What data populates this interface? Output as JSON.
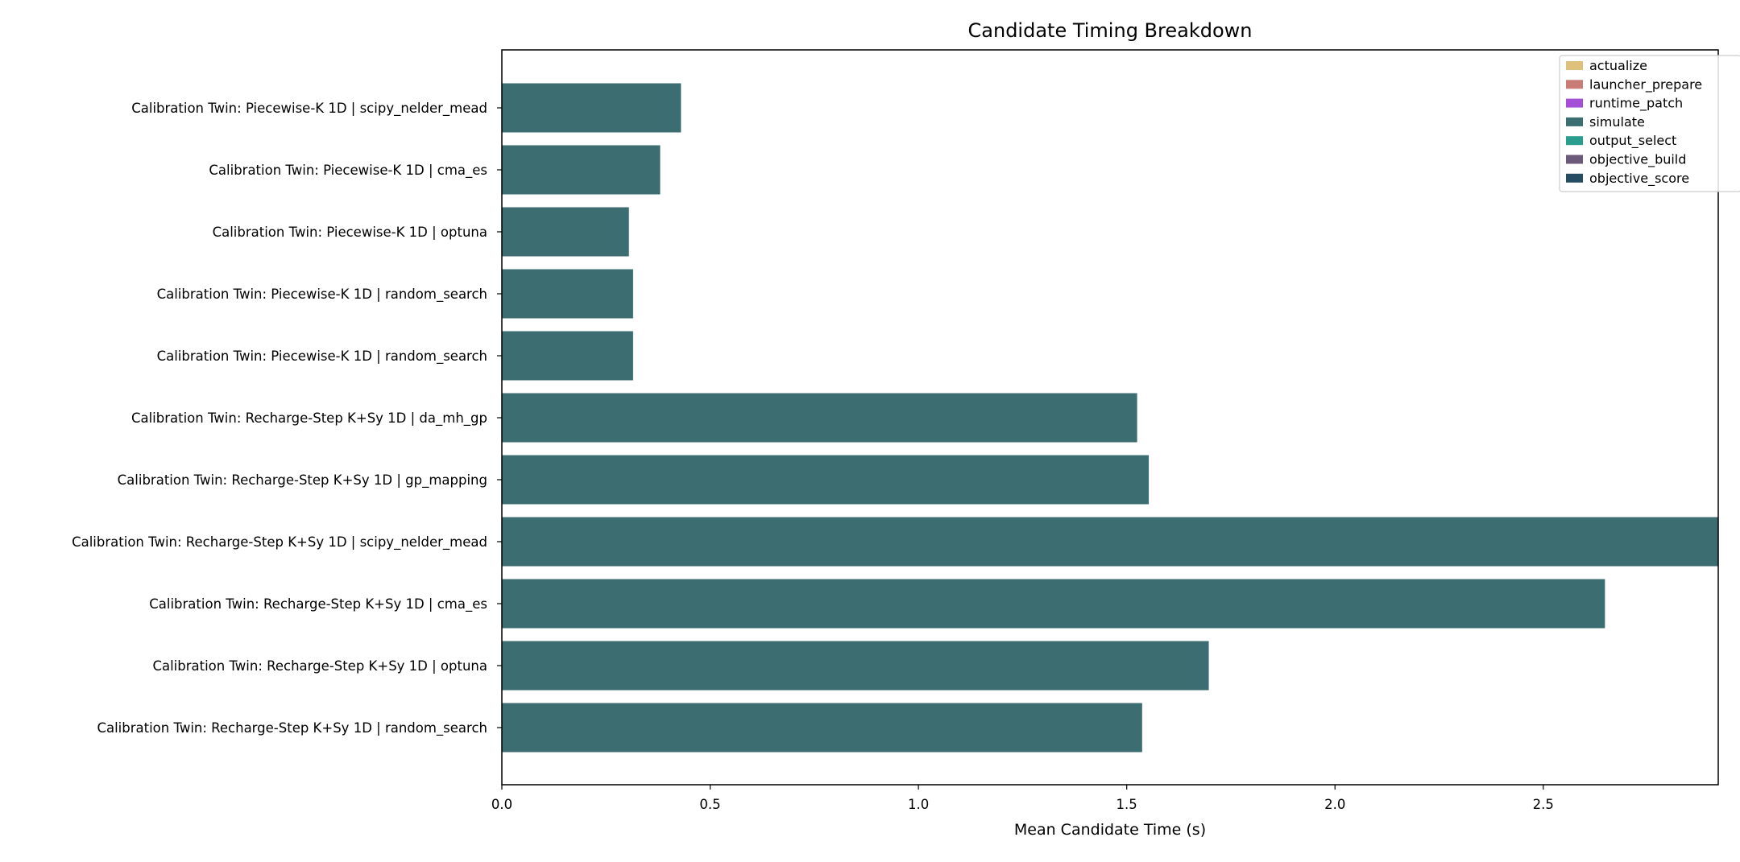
{
  "chart_data": {
    "type": "bar",
    "orientation": "horizontal",
    "stacked": true,
    "title": "Candidate Timing Breakdown",
    "xlabel": "Mean Candidate Time (s)",
    "ylabel": "",
    "xlim": [
      0,
      2.92
    ],
    "xticks": [
      "0.0",
      "0.5",
      "1.0",
      "1.5",
      "2.0",
      "2.5"
    ],
    "grid": false,
    "legend_position": "top-right",
    "categories": [
      "Calibration Twin: Piecewise-K 1D | scipy_nelder_mead",
      "Calibration Twin: Piecewise-K 1D | cma_es",
      "Calibration Twin: Piecewise-K 1D | optuna",
      "Calibration Twin: Piecewise-K 1D | random_search",
      "Calibration Twin: Piecewise-K 1D | random_search",
      "Calibration Twin: Recharge-Step K+Sy 1D | da_mh_gp",
      "Calibration Twin: Recharge-Step K+Sy 1D | gp_mapping",
      "Calibration Twin: Recharge-Step K+Sy 1D | scipy_nelder_mead",
      "Calibration Twin: Recharge-Step K+Sy 1D | cma_es",
      "Calibration Twin: Recharge-Step K+Sy 1D | optuna",
      "Calibration Twin: Recharge-Step K+Sy 1D | random_search"
    ],
    "series": [
      {
        "name": "actualize",
        "color": "#dfc07a",
        "values": [
          0,
          0,
          0,
          0,
          0,
          0,
          0,
          0,
          0,
          0,
          0
        ]
      },
      {
        "name": "launcher_prepare",
        "color": "#c97b76",
        "values": [
          0,
          0,
          0,
          0,
          0,
          0,
          0,
          0,
          0,
          0,
          0
        ]
      },
      {
        "name": "runtime_patch",
        "color": "#a44fd6",
        "values": [
          0,
          0,
          0,
          0,
          0,
          0,
          0,
          0,
          0,
          0,
          0
        ]
      },
      {
        "name": "simulate",
        "color": "#3c6e71",
        "values": [
          0.43,
          0.38,
          0.305,
          0.315,
          0.315,
          1.525,
          1.553,
          2.95,
          2.648,
          1.697,
          1.537
        ]
      },
      {
        "name": "output_select",
        "color": "#2a9d8f",
        "values": [
          0,
          0,
          0,
          0,
          0,
          0,
          0,
          0,
          0,
          0,
          0
        ]
      },
      {
        "name": "objective_build",
        "color": "#6d597a",
        "values": [
          0,
          0,
          0,
          0,
          0,
          0,
          0,
          0,
          0,
          0,
          0
        ]
      },
      {
        "name": "objective_score",
        "color": "#264c63",
        "values": [
          0,
          0,
          0,
          0,
          0,
          0,
          0,
          0,
          0,
          0,
          0
        ]
      }
    ]
  }
}
